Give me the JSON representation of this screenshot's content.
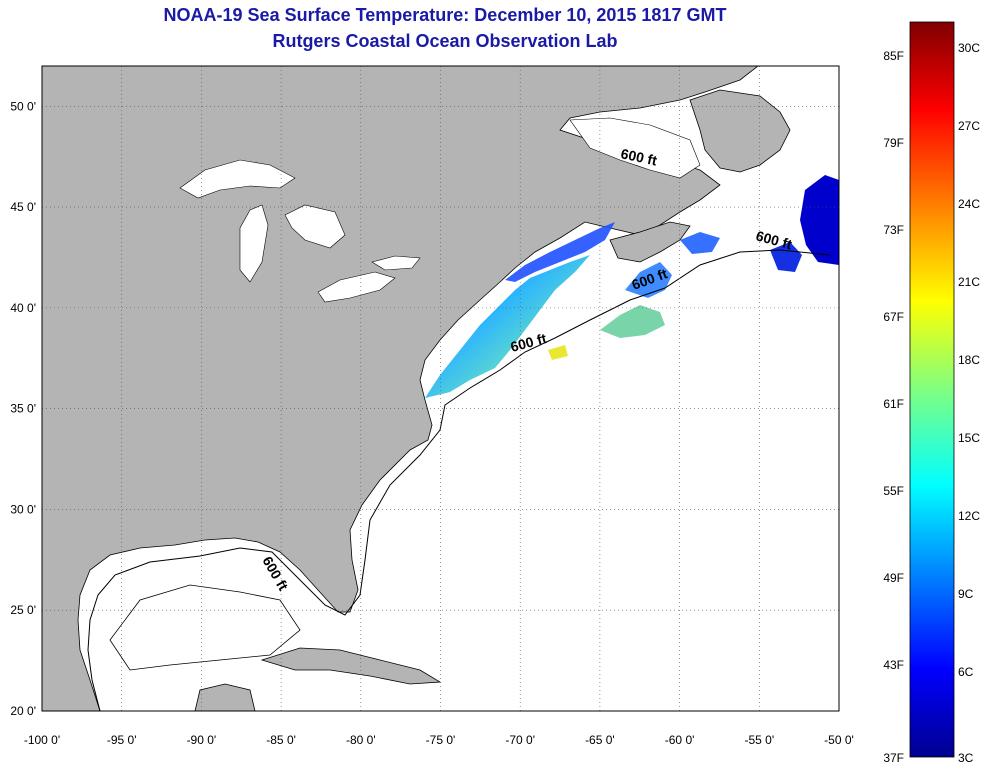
{
  "header": {
    "title": "NOAA-19 Sea Surface Temperature:  December 10, 2015 1817 GMT",
    "subtitle": "Rutgers Coastal Ocean Observation Lab"
  },
  "map": {
    "lon_range": [
      -100,
      -50
    ],
    "lat_range": [
      20,
      52
    ],
    "lon_ticks": [
      "-100 0'",
      "-95 0'",
      "-90 0'",
      "-85 0'",
      "-80 0'",
      "-75 0'",
      "-70 0'",
      "-65 0'",
      "-60 0'",
      "-55 0'",
      "-50 0'"
    ],
    "lat_ticks": [
      "20 0'",
      "25 0'",
      "30 0'",
      "35 0'",
      "40 0'",
      "45 0'",
      "50 0'"
    ],
    "depth_contour_label": "600 ft",
    "land_color": "#b4b4b4",
    "water_color": "#ffffff",
    "grid": "dotted"
  },
  "colorbar": {
    "fahrenheit_labels": [
      "85F",
      "79F",
      "73F",
      "67F",
      "61F",
      "55F",
      "49F",
      "43F",
      "37F"
    ],
    "celsius_labels": [
      "30C",
      "27C",
      "24C",
      "21C",
      "18C",
      "15C",
      "12C",
      "9C",
      "6C",
      "3C"
    ],
    "colors": [
      "#800000",
      "#ff0000",
      "#ff8000",
      "#ffff00",
      "#80ff80",
      "#00ffff",
      "#0080ff",
      "#0000ff",
      "#00008f"
    ]
  }
}
